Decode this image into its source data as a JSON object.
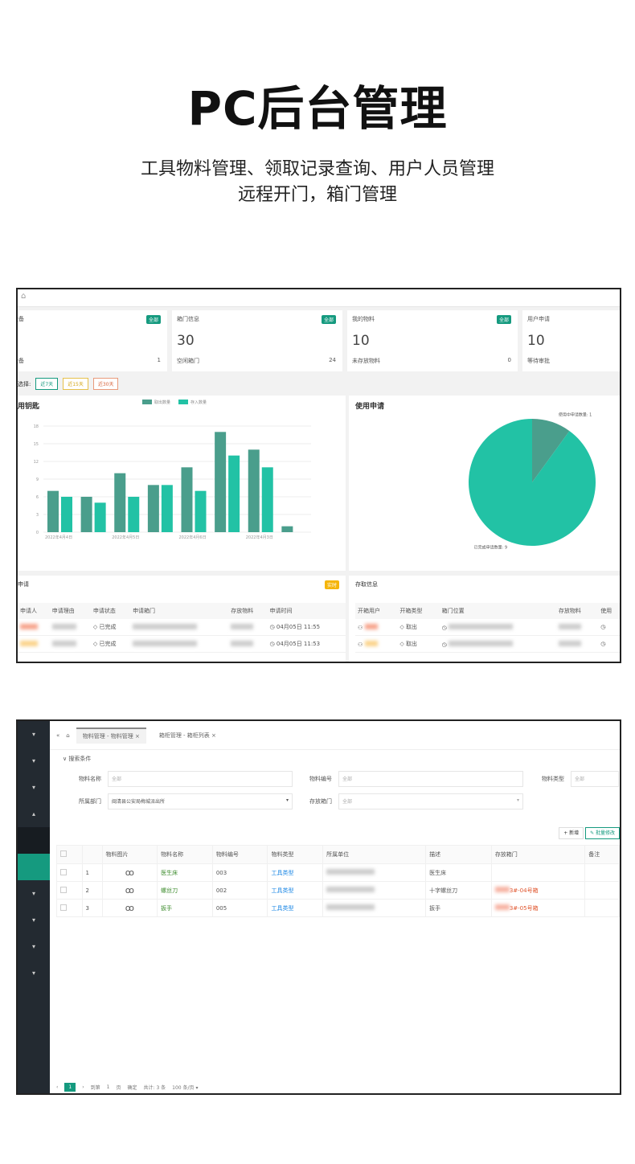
{
  "header": {
    "title": "PC后台管理",
    "subtitle_line1": "工具物料管理、领取记录查询、用户人员管理",
    "subtitle_line2": "远程开门，箱门管理"
  },
  "dashboard": {
    "cards": [
      {
        "title": "设备",
        "badge": "全部",
        "value": "",
        "foot_label": "设备",
        "foot_value": "1"
      },
      {
        "title": "箱门信息",
        "badge": "全部",
        "value": "30",
        "foot_label": "空闲箱门",
        "foot_value": "24"
      },
      {
        "title": "我的物料",
        "badge": "全部",
        "value": "10",
        "foot_label": "未存放物料",
        "foot_value": "0"
      },
      {
        "title": "用户申请",
        "badge": "",
        "value": "10",
        "foot_label": "等待审批",
        "foot_value": ""
      }
    ],
    "filter_label": "选择:",
    "filters": [
      "近7天",
      "近15天",
      "近30天"
    ],
    "bar_title": "用钥匙",
    "pie_title": "使用申请",
    "apply_panel": {
      "title": "申请",
      "badge": "实时",
      "headers": [
        "申请人",
        "申请理由",
        "申请状态",
        "申请箱门",
        "存放物料",
        "申请时间"
      ],
      "rows": [
        {
          "status": "已完成",
          "time": "04月05日 11:55"
        },
        {
          "status": "已完成",
          "time": "04月05日 11:53"
        }
      ]
    },
    "access_panel": {
      "title": "存取信息",
      "headers": [
        "开箱用户",
        "开箱类型",
        "箱门位置",
        "存放物料",
        "使用"
      ],
      "rows": [
        {
          "type": "取出"
        },
        {
          "type": "取出"
        }
      ]
    }
  },
  "chart_data": [
    {
      "type": "bar",
      "title": "用钥匙",
      "categories": [
        "2022年4月4日",
        "",
        "2022年4月5日",
        "",
        "2022年4月6日",
        "",
        "2022年4月3日",
        ""
      ],
      "series": [
        {
          "name": "取出数量",
          "color": "#4a9e8c",
          "values": [
            7,
            6,
            10,
            8,
            11,
            17,
            14,
            1
          ]
        },
        {
          "name": "存入数量",
          "color": "#22c2a5",
          "values": [
            6,
            5,
            6,
            8,
            7,
            13,
            11,
            0
          ]
        }
      ],
      "ylim": [
        0,
        18
      ],
      "yticks": [
        0,
        3,
        6,
        9,
        12,
        15,
        18
      ],
      "legend": "top-center"
    },
    {
      "type": "pie",
      "title": "使用申请",
      "slices": [
        {
          "label": "使用中申请数量",
          "value": 1,
          "color": "#4a9e8c"
        },
        {
          "label": "已完成申请数量",
          "value": 9,
          "color": "#22c2a5"
        }
      ]
    }
  ],
  "materials": {
    "tabs": [
      "物料管理 - 物料管理",
      "箱柜管理 - 箱柜列表"
    ],
    "search_label": "搜索条件",
    "fields": {
      "name_label": "物料名称",
      "name_ph": "全部",
      "code_label": "物料编号",
      "code_ph": "全部",
      "type_label": "物料类型",
      "type_ph": "全部",
      "dept_label": "所属部门",
      "dept_value": "闽清县公安局梅城派出所",
      "door_label": "存放箱门",
      "door_ph": "全部"
    },
    "add_button": "+ 新增",
    "batch_button": "✎ 批量修改",
    "headers": [
      "",
      "",
      "物料图片",
      "物料名称",
      "物料编号",
      "物料类型",
      "所属单位",
      "描述",
      "存放箱门",
      "备注"
    ],
    "rows": [
      {
        "idx": "1",
        "name": "医生床",
        "code": "003",
        "type": "工具类型",
        "desc": "医生床",
        "door": ""
      },
      {
        "idx": "2",
        "name": "螺丝刀",
        "code": "002",
        "type": "工具类型",
        "desc": "十字螺丝刀",
        "door": "3#-04号箱"
      },
      {
        "idx": "3",
        "name": "扳手",
        "code": "005",
        "type": "工具类型",
        "desc": "扳手",
        "door": "3#-05号箱"
      }
    ],
    "pager": {
      "page": "1",
      "goto": "到第",
      "page_input": "1",
      "unit": "页",
      "confirm": "确定",
      "total": "共计: 3 条",
      "per_page": "100 条/页"
    }
  }
}
